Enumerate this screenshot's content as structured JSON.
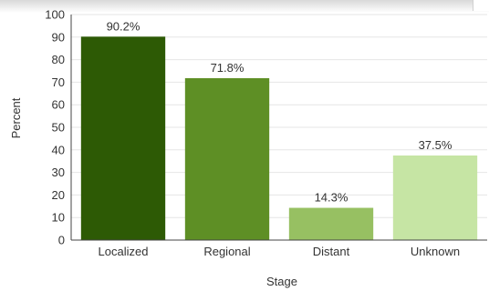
{
  "chart_data": {
    "type": "bar",
    "categories": [
      "Localized",
      "Regional",
      "Distant",
      "Unknown"
    ],
    "values": [
      90.2,
      71.8,
      14.3,
      37.5
    ],
    "data_labels": [
      "90.2%",
      "71.8%",
      "14.3%",
      "37.5%"
    ],
    "colors": [
      "#2d5a05",
      "#5e8f25",
      "#97c062",
      "#c6e5a4"
    ],
    "xlabel": "Stage",
    "ylabel": "Percent",
    "ylim": [
      0,
      100
    ],
    "yticks": [
      0,
      10,
      20,
      30,
      40,
      50,
      60,
      70,
      80,
      90,
      100
    ],
    "grid": true,
    "legend": "none"
  }
}
